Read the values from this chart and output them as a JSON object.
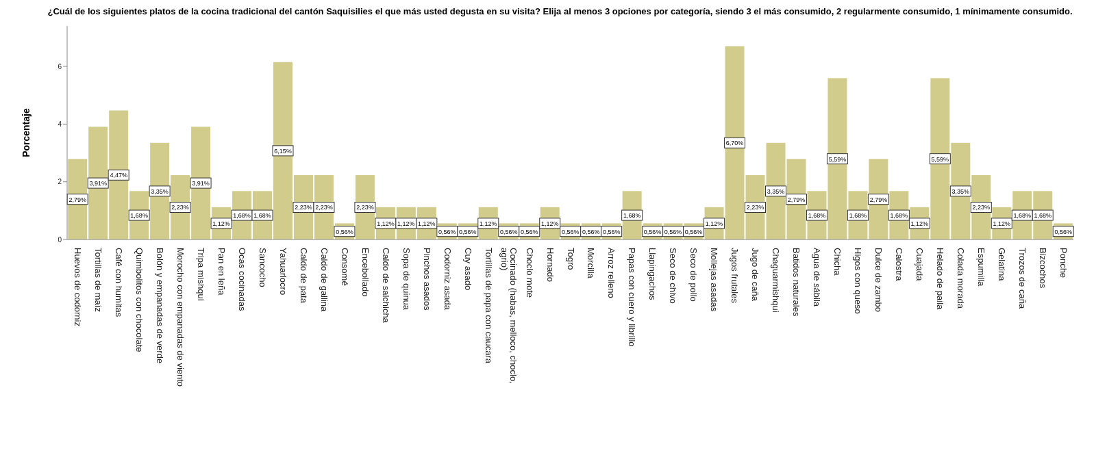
{
  "chart_data": {
    "type": "bar",
    "title": "¿Cuál de los siguientes platos de la cocina tradicional del cantón Saquisilies el que más usted degusta en su visita? Elija al menos 3 opciones por categoría, siendo 3 el más consumido, 2 regularmente consumido, 1 mínimamente consumido.",
    "ylabel": "Porcentaje",
    "color": "#d2cc8c",
    "ylim": [
      0,
      7.4
    ],
    "yticks": [
      0,
      2,
      4,
      6
    ],
    "categories": [
      "Huevos de codorniz",
      "Tortillas de maíz",
      "Café con humitas",
      "Quimbolitos con chocolate",
      "Bolón y empanadas de verde",
      "Morocho con empanadas de viento",
      "Tripa mishqui",
      "Pan en leña",
      "Ocas cocinadas",
      "Sancocho",
      "Yahuarlocro",
      "Caldo de pata",
      "Caldo de gallina",
      "Consomé",
      "Encebollado",
      "Caldo de salchicha",
      "Sopa de quinua",
      "Pinchos asados",
      "Codorniz asada",
      "Cuy asado",
      "Tortillas de papa con caucara",
      "Cocinado (habas, melloco, choclo, agrio)",
      "Choclo mote",
      "Hornado",
      "Togro",
      "Morcilla",
      "Arroz relleno",
      "Papas con cuero y librillo",
      "Llapingachos",
      "Seco de chivo",
      "Seco de pollo",
      "Mollejas asadas",
      "Jugos frutales",
      "Jugo de caña",
      "Chaguarmishqui",
      "Batidos naturales",
      "Agua de sábila",
      "Chicha",
      "Higos con queso",
      "Dulce de zambo",
      "Calostra",
      "Cuajada",
      "Helado de paila",
      "Colada morada",
      "Espumilla",
      "Gelatina",
      "Trozos de caña",
      "Bizcochos",
      "Ponche"
    ],
    "values": [
      2.79,
      3.91,
      4.47,
      1.68,
      3.35,
      2.23,
      3.91,
      1.12,
      1.68,
      1.68,
      6.15,
      2.23,
      2.23,
      0.56,
      2.23,
      1.12,
      1.12,
      1.12,
      0.56,
      0.56,
      1.12,
      0.56,
      0.56,
      1.12,
      0.56,
      0.56,
      0.56,
      1.68,
      0.56,
      0.56,
      0.56,
      1.12,
      6.7,
      2.23,
      3.35,
      2.79,
      1.68,
      5.59,
      1.68,
      2.79,
      1.68,
      1.12,
      5.59,
      3.35,
      2.23,
      1.12,
      1.68,
      1.68,
      0.56
    ],
    "value_labels": [
      "2,79%",
      "3,91%",
      "4,47%",
      "1,68%",
      "3,35%",
      "2,23%",
      "3,91%",
      "1,12%",
      "1,68%",
      "1,68%",
      "6,15%",
      "2,23%",
      "2,23%",
      "0,56%",
      "2,23%",
      "1,12%",
      "1,12%",
      "1,12%",
      "0,56%",
      "0,56%",
      "1,12%",
      "0,56%",
      "0,56%",
      "1,12%",
      "0,56%",
      "0,56%",
      "0,56%",
      "1,68%",
      "0,56%",
      "0,56%",
      "0,56%",
      "1,12%",
      "6,70%",
      "2,23%",
      "3,35%",
      "2,79%",
      "1,68%",
      "5,59%",
      "1,68%",
      "2,79%",
      "1,68%",
      "1,12%",
      "5,59%",
      "3,35%",
      "2,23%",
      "1,12%",
      "1,68%",
      "1,68%",
      "0,56%"
    ]
  }
}
